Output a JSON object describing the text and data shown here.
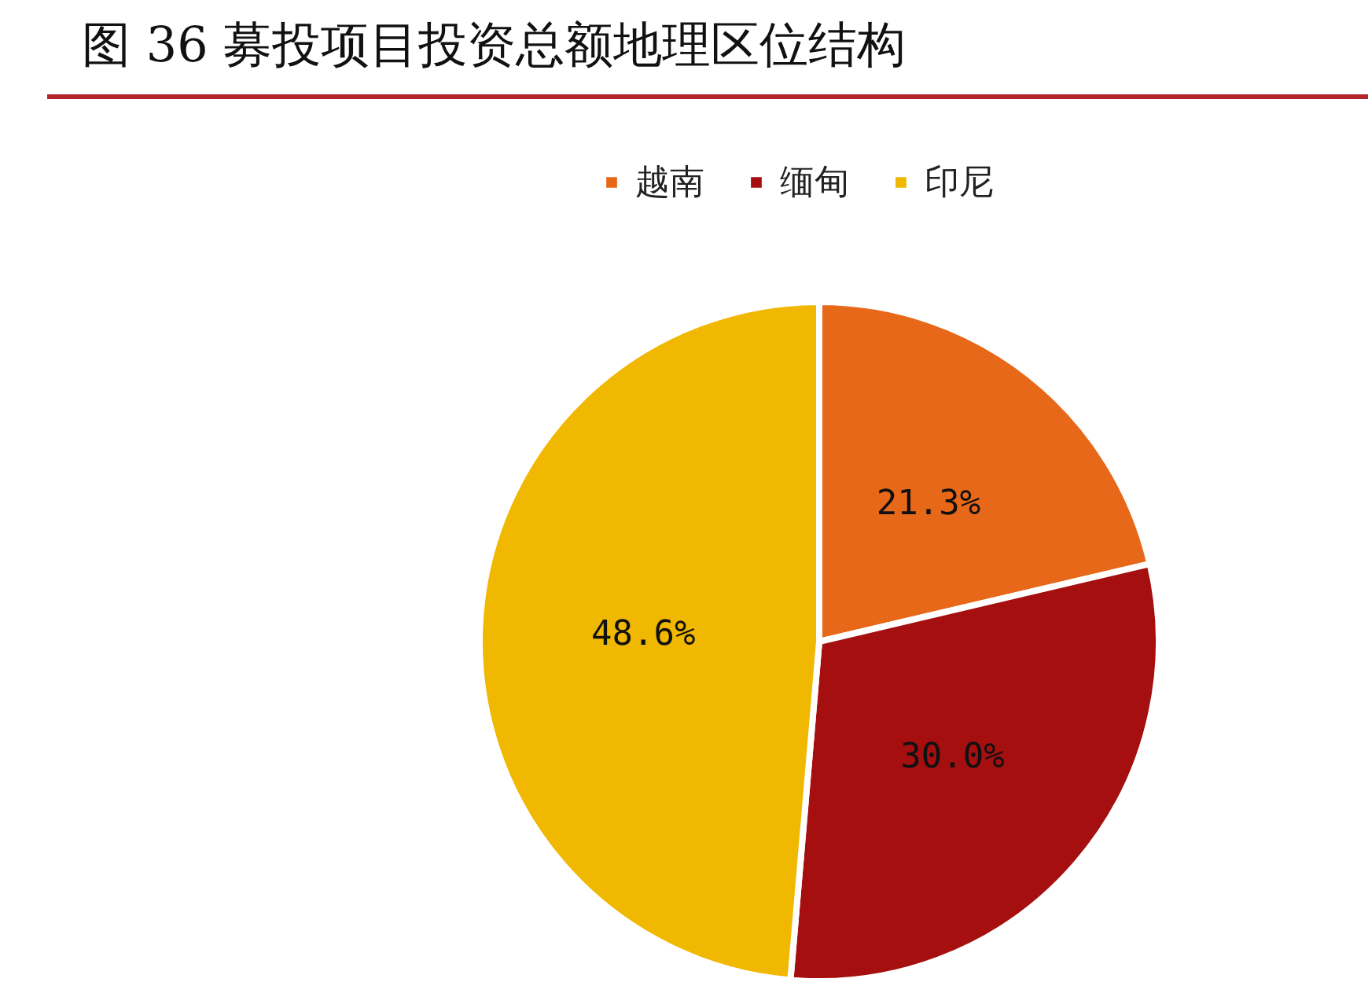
{
  "chart_data": {
    "type": "pie",
    "title": "图 36 募投项目投资总额地理区位结构",
    "categories": [
      "越南",
      "缅甸",
      "印尼"
    ],
    "values": [
      21.3,
      30.0,
      48.6
    ],
    "colors": [
      "#e8681a",
      "#a50f0f",
      "#f0b800"
    ],
    "value_labels": [
      "21.3%",
      "30.0%",
      "48.6%"
    ],
    "legend": "top"
  }
}
